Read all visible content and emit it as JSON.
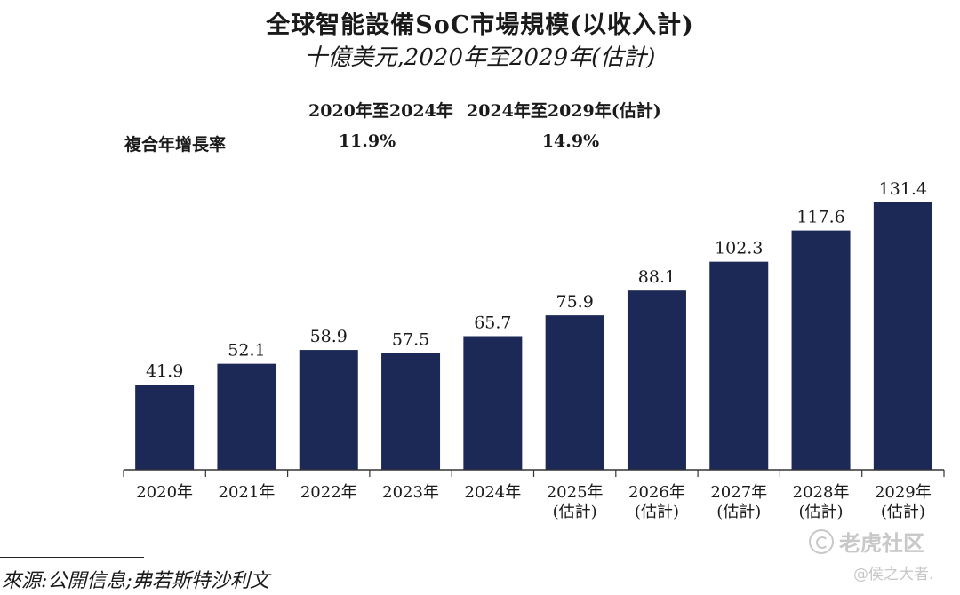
{
  "chart_data": {
    "type": "bar",
    "title": "全球智能設備SoC市場規模(以收入計)",
    "subtitle": "十億美元,2020年至2029年(估計)",
    "categories": [
      "2020年",
      "2021年",
      "2022年",
      "2023年",
      "2024年",
      "2025年\n(估計)",
      "2026年\n(估計)",
      "2027年\n(估計)",
      "2028年\n(估計)",
      "2029年\n(估計)"
    ],
    "values": [
      41.9,
      52.1,
      58.9,
      57.5,
      65.7,
      75.9,
      88.1,
      102.3,
      117.6,
      131.4
    ],
    "value_labels": [
      "41.9",
      "52.1",
      "58.9",
      "57.5",
      "65.7",
      "75.9",
      "88.1",
      "102.3",
      "117.6",
      "131.4"
    ],
    "ylim": [
      0,
      131.4
    ],
    "xlabel": "",
    "ylabel": "",
    "bar_color": "#1c2957",
    "grid": false
  },
  "cagr_table": {
    "header_1": "2020年至2024年",
    "header_2": "2024年至2029年(估計)",
    "row_label": "複合年增長率",
    "value_1": "11.9%",
    "value_2": "14.9%"
  },
  "source": "來源:公開信息;弗若斯特沙利文",
  "watermark": {
    "main": "老虎社区",
    "handle": "@侯之大者."
  }
}
